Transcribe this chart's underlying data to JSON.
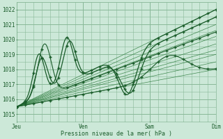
{
  "bg_color": "#cce8d8",
  "plot_bg_color": "#cce8d8",
  "grid_color": "#88b898",
  "line_color_dark": "#1a5c2a",
  "line_color_thin": "#2a7a3a",
  "marker_color": "#1a5c2a",
  "title": "Pression niveau de la mer( hPa )",
  "ylabel_values": [
    1015,
    1016,
    1017,
    1018,
    1019,
    1020,
    1021,
    1022
  ],
  "xlim": [
    0,
    72
  ],
  "ylim": [
    1014.5,
    1022.5
  ],
  "xtick_positions": [
    0,
    24,
    48,
    72
  ],
  "xtick_labels": [
    "Jeu",
    "Ven",
    "Sam",
    "Dim"
  ]
}
